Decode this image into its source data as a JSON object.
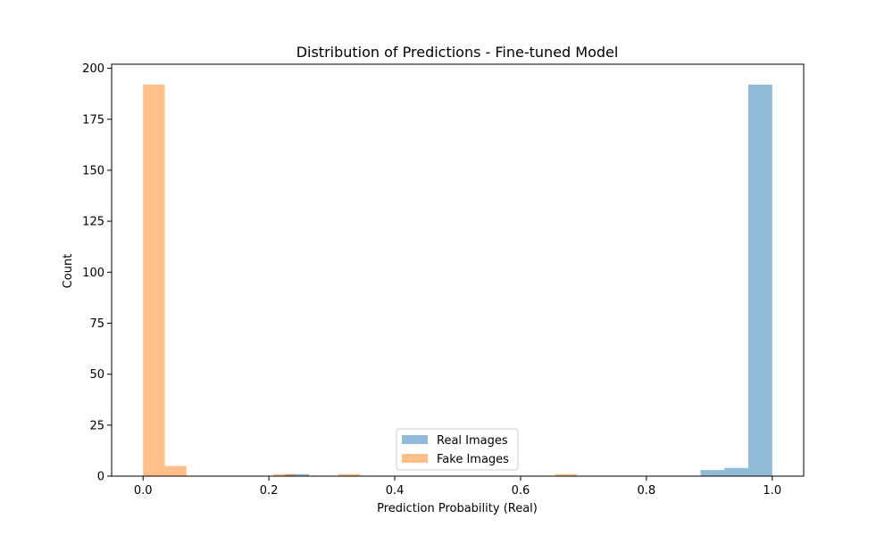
{
  "chart_data": {
    "type": "bar",
    "title": "Distribution of Predictions - Fine-tuned Model",
    "xlabel": "Prediction Probability (Real)",
    "ylabel": "Count",
    "xlim": [
      -0.05,
      1.05
    ],
    "ylim": [
      0,
      202
    ],
    "xticks": [
      0.0,
      0.2,
      0.4,
      0.6,
      0.8,
      1.0
    ],
    "xtick_labels": [
      "0.0",
      "0.2",
      "0.4",
      "0.6",
      "0.8",
      "1.0"
    ],
    "yticks": [
      0,
      25,
      50,
      75,
      100,
      125,
      150,
      175,
      200
    ],
    "ytick_labels": [
      "0",
      "25",
      "50",
      "75",
      "100",
      "125",
      "150",
      "175",
      "200"
    ],
    "legend_position": "lower center",
    "grid": false,
    "series": [
      {
        "name": "Real Images",
        "color": "#1f77b4",
        "alpha": 0.5,
        "bins": [
          {
            "x0": 0.226,
            "x1": 0.264,
            "count": 1
          },
          {
            "x0": 0.886,
            "x1": 0.924,
            "count": 3
          },
          {
            "x0": 0.924,
            "x1": 0.962,
            "count": 4
          },
          {
            "x0": 0.962,
            "x1": 1.0,
            "count": 192
          }
        ]
      },
      {
        "name": "Fake Images",
        "color": "#ff7f0e",
        "alpha": 0.5,
        "bins": [
          {
            "x0": 0.0,
            "x1": 0.0345,
            "count": 192
          },
          {
            "x0": 0.0345,
            "x1": 0.069,
            "count": 5
          },
          {
            "x0": 0.207,
            "x1": 0.241,
            "count": 1
          },
          {
            "x0": 0.31,
            "x1": 0.345,
            "count": 1
          },
          {
            "x0": 0.655,
            "x1": 0.69,
            "count": 1
          }
        ]
      }
    ]
  }
}
